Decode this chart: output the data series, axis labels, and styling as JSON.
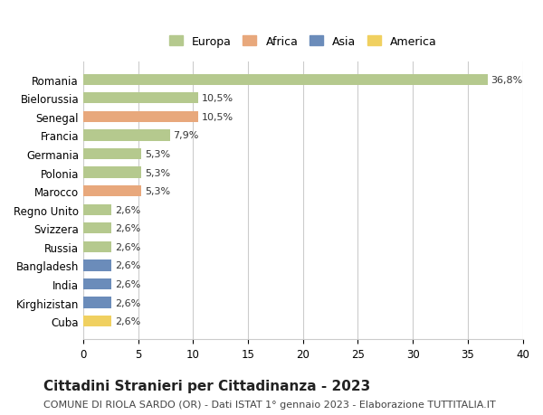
{
  "categories": [
    "Romania",
    "Bielorussia",
    "Senegal",
    "Francia",
    "Germania",
    "Polonia",
    "Marocco",
    "Regno Unito",
    "Svizzera",
    "Russia",
    "Bangladesh",
    "India",
    "Kirghizistan",
    "Cuba"
  ],
  "values": [
    36.8,
    10.5,
    10.5,
    7.9,
    5.3,
    5.3,
    5.3,
    2.6,
    2.6,
    2.6,
    2.6,
    2.6,
    2.6,
    2.6
  ],
  "labels": [
    "36,8%",
    "10,5%",
    "10,5%",
    "7,9%",
    "5,3%",
    "5,3%",
    "5,3%",
    "2,6%",
    "2,6%",
    "2,6%",
    "2,6%",
    "2,6%",
    "2,6%",
    "2,6%"
  ],
  "continents": [
    "Europa",
    "Europa",
    "Africa",
    "Europa",
    "Europa",
    "Europa",
    "Africa",
    "Europa",
    "Europa",
    "Europa",
    "Asia",
    "Asia",
    "Asia",
    "America"
  ],
  "colors": {
    "Europa": "#b5c98e",
    "Africa": "#e8a87c",
    "Asia": "#6b8cba",
    "America": "#f0d060"
  },
  "legend_order": [
    "Europa",
    "Africa",
    "Asia",
    "America"
  ],
  "xlim": [
    0,
    40
  ],
  "xticks": [
    0,
    5,
    10,
    15,
    20,
    25,
    30,
    35,
    40
  ],
  "title": "Cittadini Stranieri per Cittadinanza - 2023",
  "subtitle": "COMUNE DI RIOLA SARDO (OR) - Dati ISTAT 1° gennaio 2023 - Elaborazione TUTTITALIA.IT",
  "bg_color": "#ffffff",
  "grid_color": "#cccccc",
  "label_fontsize": 8,
  "title_fontsize": 11,
  "subtitle_fontsize": 8
}
